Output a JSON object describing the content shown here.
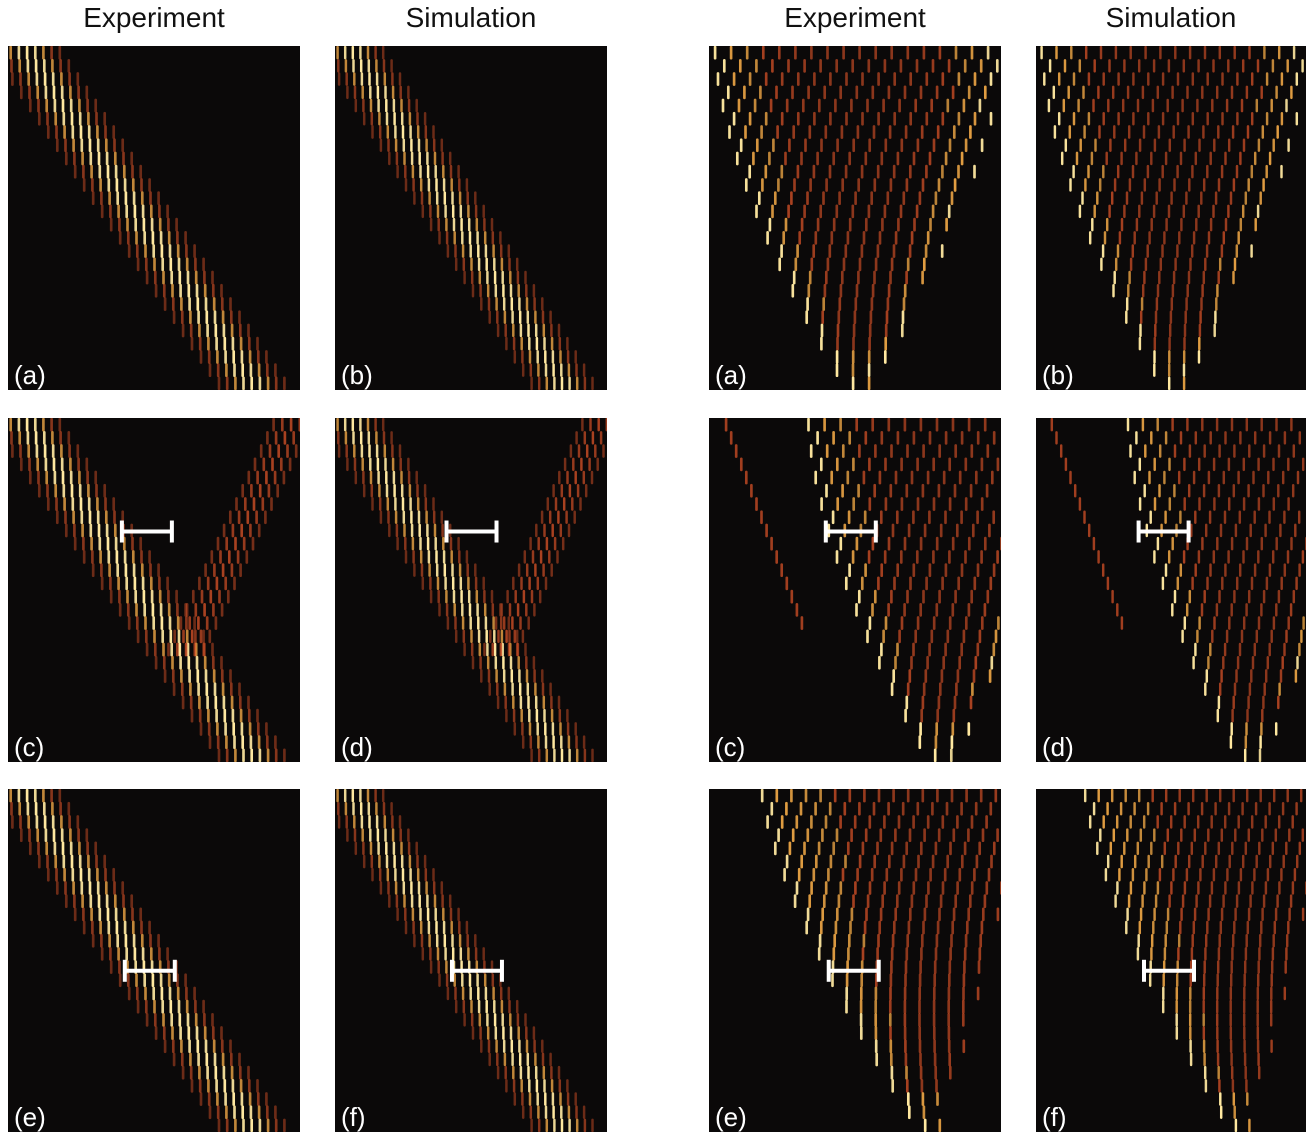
{
  "figure": {
    "left_group": {
      "col_titles": [
        "Experiment",
        "Simulation"
      ],
      "panels": [
        {
          "label": "(a)",
          "pattern": "single-diagonal",
          "scale_bar": false
        },
        {
          "label": "(b)",
          "pattern": "single-diagonal",
          "scale_bar": false
        },
        {
          "label": "(c)",
          "pattern": "split-diagonal",
          "scale_bar": true
        },
        {
          "label": "(d)",
          "pattern": "split-diagonal",
          "scale_bar": true
        },
        {
          "label": "(e)",
          "pattern": "single-diagonal",
          "scale_bar": true
        },
        {
          "label": "(f)",
          "pattern": "single-diagonal",
          "scale_bar": true
        }
      ]
    },
    "right_group": {
      "col_titles": [
        "Experiment",
        "Simulation"
      ],
      "panels": [
        {
          "label": "(a)",
          "pattern": "diamond",
          "scale_bar": false
        },
        {
          "label": "(b)",
          "pattern": "diamond",
          "scale_bar": false
        },
        {
          "label": "(c)",
          "pattern": "shifted-cone",
          "scale_bar": true
        },
        {
          "label": "(d)",
          "pattern": "shifted-cone",
          "scale_bar": true
        },
        {
          "label": "(e)",
          "pattern": "tilted-cone",
          "scale_bar": true
        },
        {
          "label": "(f)",
          "pattern": "tilted-cone",
          "scale_bar": true
        }
      ]
    },
    "colors": {
      "background": "#0b0909",
      "hot": "#ffe8a0",
      "warm": "#e8582a",
      "scale_bar": "#ffffff"
    }
  }
}
